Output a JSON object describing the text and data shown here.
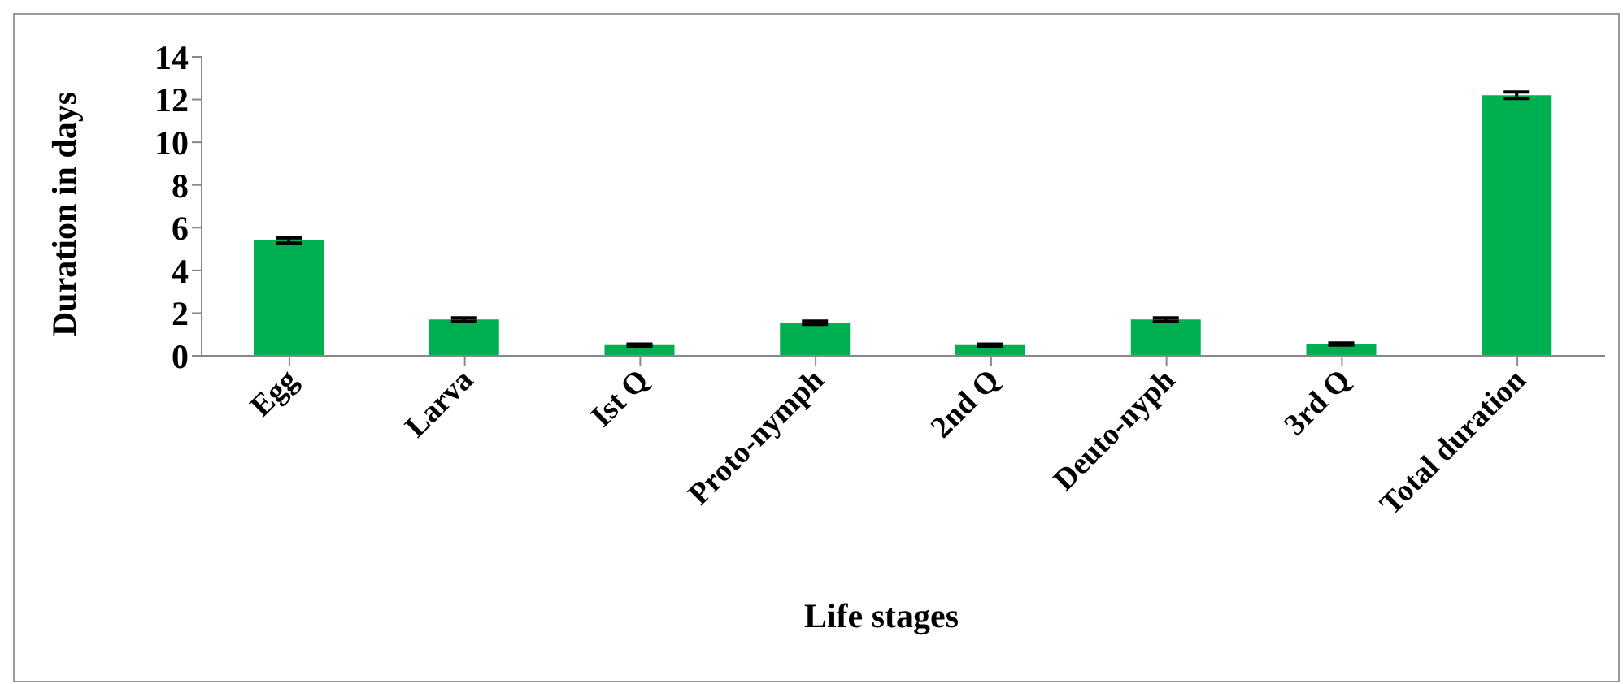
{
  "chart_data": {
    "type": "bar",
    "xlabel": "Life stages",
    "ylabel": "Duration in days",
    "categories": [
      "Egg",
      "Larva",
      "Ist Q",
      "Proto-nymph",
      "2nd Q",
      "Deuto-nyph",
      "3rd Q",
      "Total duration"
    ],
    "values": [
      5.4,
      1.7,
      0.5,
      1.55,
      0.5,
      1.7,
      0.55,
      12.2
    ],
    "errors": [
      0.12,
      0.08,
      0.05,
      0.08,
      0.05,
      0.08,
      0.05,
      0.15
    ],
    "color": "#00b050",
    "ylim": [
      0,
      14
    ],
    "yticks": [
      0,
      2,
      4,
      6,
      8,
      10,
      12,
      14
    ],
    "grid": false,
    "legend": false
  }
}
